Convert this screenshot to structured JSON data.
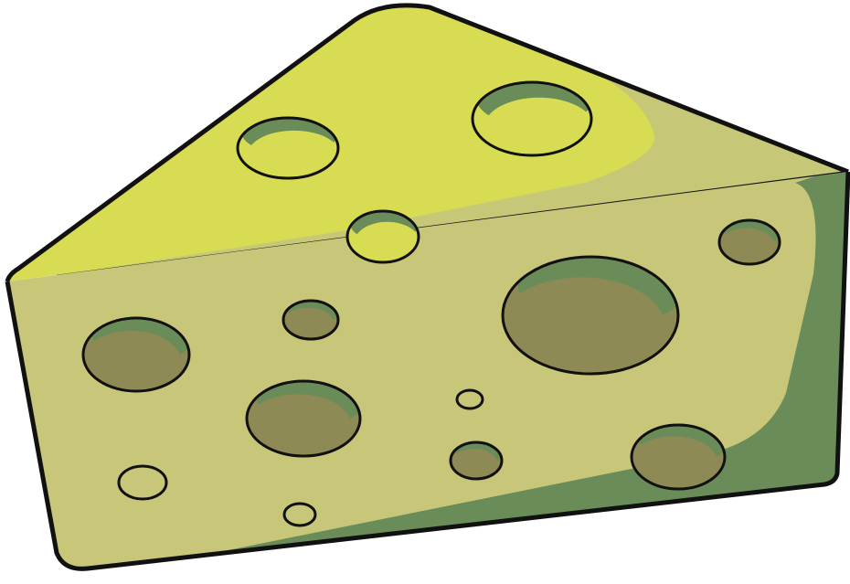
{
  "illustration": {
    "subject": "cheese-wedge",
    "colors": {
      "background": "#ffffff",
      "outline": "#111111",
      "top_face": "#d8dc52",
      "top_face_shade": "#c6c877",
      "front_face": "#c7c679",
      "front_face_shadow": "#6a8c59",
      "hole_fill": "#8d8a55",
      "hole_inner_shadow": "#6a8c59"
    }
  }
}
